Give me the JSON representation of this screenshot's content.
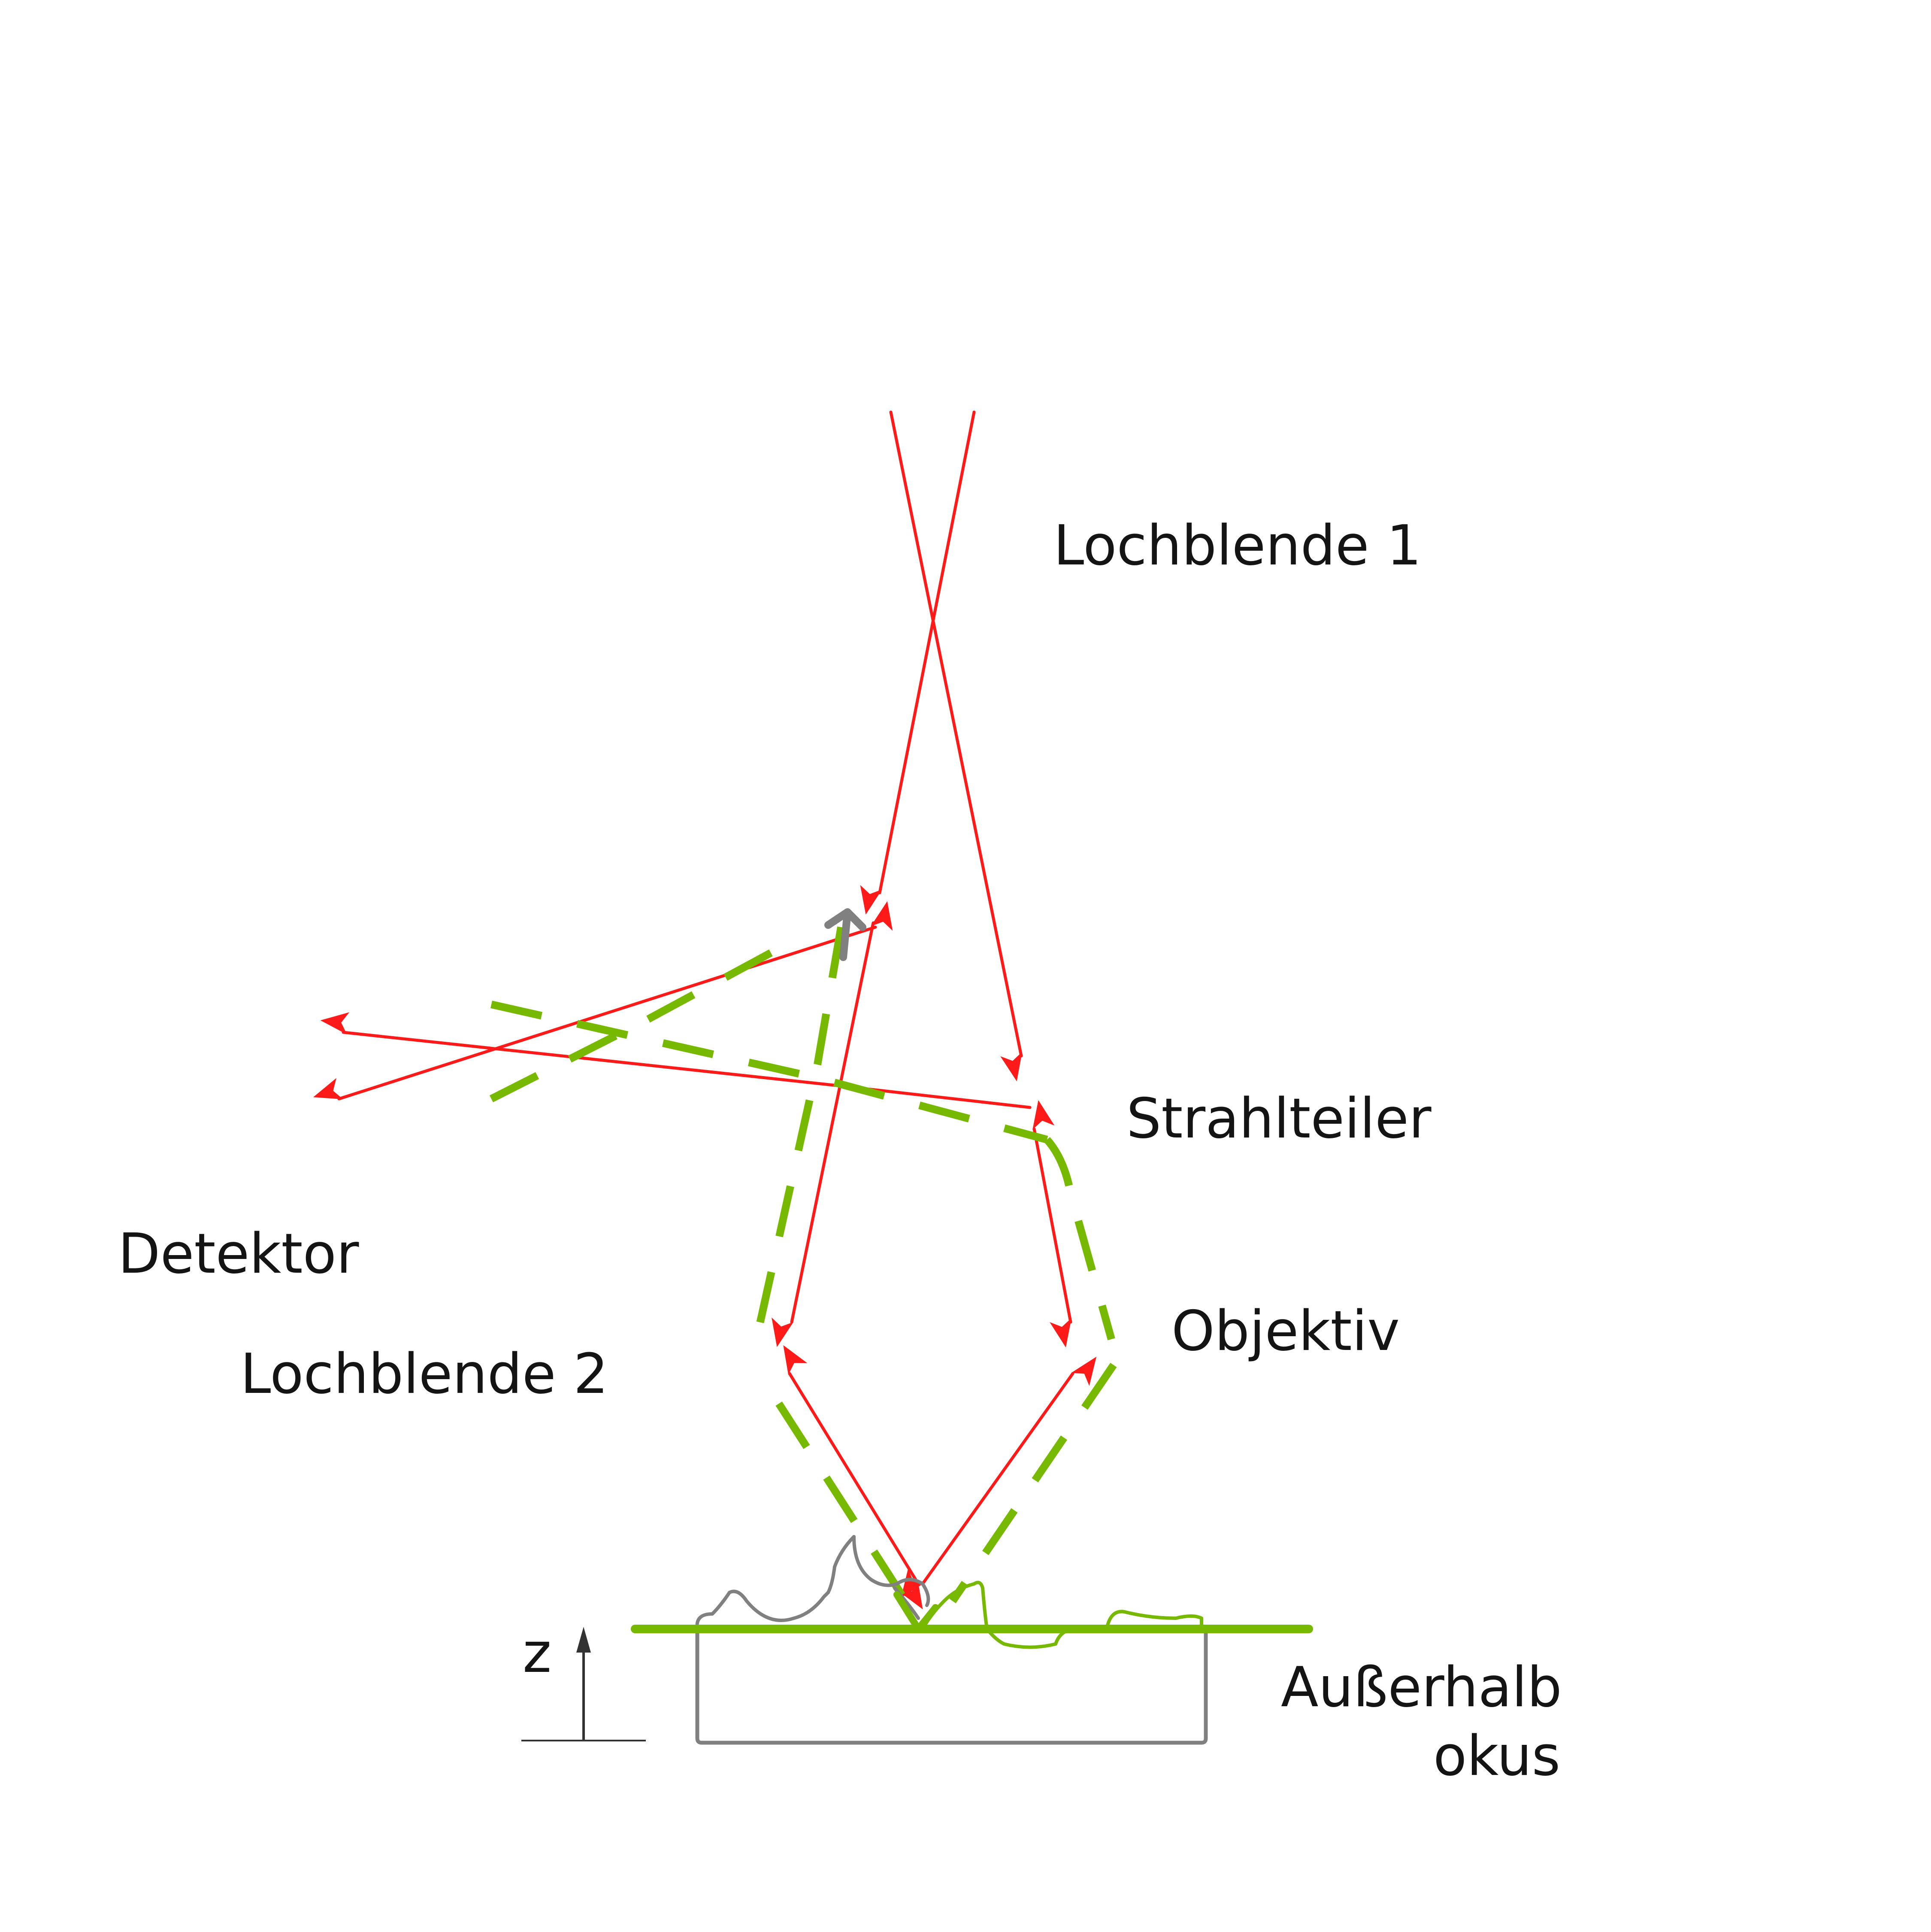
{
  "labels": {
    "pinhole1": "Lochblende 1",
    "beamsplitter": "Strahlteiler",
    "detector": "Detektor",
    "pinhole2": "Lochblende 2",
    "objective": "Objektiv",
    "out_of_focus_line1": "Außerhalb",
    "out_of_focus_line2": "okus",
    "z_axis": "z"
  },
  "colors": {
    "illumination": "#ff1a1a",
    "out_of_focus_light": "#77b800",
    "sample": "#808080",
    "axis": "#333333",
    "text": "#141414"
  }
}
